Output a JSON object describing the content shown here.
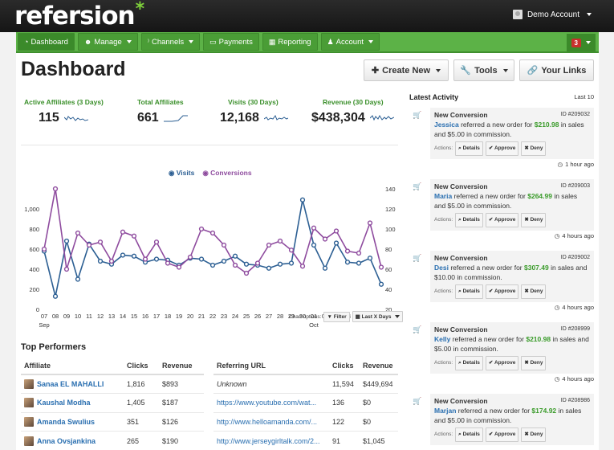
{
  "header": {
    "logo": "refersion",
    "logo_mark": "*",
    "account_label": "Demo Account"
  },
  "nav": {
    "items": [
      {
        "label": "Dashboard",
        "icon": "dashboard-icon"
      },
      {
        "label": "Manage",
        "icon": "users-icon"
      },
      {
        "label": "Channels",
        "icon": "rss-icon"
      },
      {
        "label": "Payments",
        "icon": "money-icon"
      },
      {
        "label": "Reporting",
        "icon": "chart-icon"
      },
      {
        "label": "Account",
        "icon": "user-icon"
      }
    ],
    "notification_count": "3"
  },
  "page": {
    "title": "Dashboard",
    "create_new": "Create New",
    "tools": "Tools",
    "your_links": "Your Links"
  },
  "metrics": [
    {
      "label": "Active Affiliates (3 Days)",
      "value": "115"
    },
    {
      "label": "Total Affiliates",
      "value": "661"
    },
    {
      "label": "Visits (30 Days)",
      "value": "12,168"
    },
    {
      "label": "Revenue (30 Days)",
      "value": "$438,304"
    }
  ],
  "chart_data": {
    "type": "line",
    "categories": [
      "07",
      "08",
      "09",
      "10",
      "11",
      "12",
      "13",
      "14",
      "15",
      "16",
      "17",
      "18",
      "19",
      "20",
      "21",
      "22",
      "23",
      "24",
      "25",
      "26",
      "27",
      "28",
      "29",
      "30",
      "01",
      "02",
      "03",
      "04",
      "05",
      "06",
      "07"
    ],
    "month_labels": [
      "Sep",
      "Oct"
    ],
    "series": [
      {
        "name": "Visits",
        "axis": "left",
        "color": "#2c5f93",
        "values": [
          580,
          130,
          680,
          300,
          650,
          480,
          450,
          540,
          530,
          470,
          500,
          490,
          440,
          510,
          500,
          440,
          480,
          530,
          450,
          440,
          410,
          450,
          460,
          1090,
          640,
          410,
          660,
          470,
          460,
          510,
          250
        ]
      },
      {
        "name": "Conversions",
        "axis": "right",
        "color": "#8e4b9e",
        "values": [
          80,
          140,
          60,
          96,
          84,
          87,
          68,
          97,
          93,
          70,
          87,
          66,
          62,
          72,
          100,
          96,
          84,
          64,
          56,
          66,
          84,
          88,
          79,
          63,
          101,
          90,
          98,
          78,
          76,
          106,
          62
        ]
      }
    ],
    "y_left_ticks": [
      "1,000",
      "800",
      "600",
      "400",
      "200",
      "0"
    ],
    "y_left_range": [
      0,
      1200
    ],
    "y_right_ticks": [
      "140",
      "120",
      "100",
      "80",
      "60",
      "40",
      "20"
    ],
    "y_right_range": [
      20,
      140
    ],
    "legend": "top-center",
    "grid": false
  },
  "chart_options": {
    "label": "Chart options:",
    "filter": "Filter",
    "range": "Last X Days"
  },
  "top_performers": {
    "title": "Top Performers",
    "affiliate_headers": [
      "Affiliate",
      "Clicks",
      "Revenue"
    ],
    "affiliates": [
      {
        "name": "Sanaa EL MAHALLI",
        "clicks": "1,816",
        "revenue": "$893"
      },
      {
        "name": "Kaushal Modha",
        "clicks": "1,405",
        "revenue": "$187"
      },
      {
        "name": "Amanda Swulius",
        "clicks": "351",
        "revenue": "$126"
      },
      {
        "name": "Anna Ovsjankina",
        "clicks": "265",
        "revenue": "$190"
      }
    ],
    "url_headers": [
      "Referring URL",
      "Clicks",
      "Revenue"
    ],
    "urls": [
      {
        "url": "Unknown",
        "clicks": "11,594",
        "revenue": "$449,694"
      },
      {
        "url": "https://www.youtube.com/wat...",
        "clicks": "136",
        "revenue": "$0"
      },
      {
        "url": "http://www.helloamanda.com/...",
        "clicks": "122",
        "revenue": "$0"
      },
      {
        "url": "http://www.jerseygirltalk.com/2...",
        "clicks": "91",
        "revenue": "$1,045"
      }
    ]
  },
  "activity": {
    "title": "Latest Activity",
    "last": "Last 10",
    "actions_label": "Actions:",
    "details": "Details",
    "approve": "Approve",
    "deny": "Deny",
    "items": [
      {
        "type": "New Conversion",
        "id": "ID #209032",
        "name": "Jessica",
        "text1": " referred a new order for ",
        "amount": "$210.98",
        "text2": " in sales and $5.00 in commission.",
        "time": "1 hour ago"
      },
      {
        "type": "New Conversion",
        "id": "ID #209003",
        "name": "Maria",
        "text1": " referred a new order for ",
        "amount": "$264.99",
        "text2": " in sales and $5.00 in commission.",
        "time": "4 hours ago"
      },
      {
        "type": "New Conversion",
        "id": "ID #209002",
        "name": "Desi",
        "text1": " referred a new order for ",
        "amount": "$307.49",
        "text2": " in sales and $10.00 in commission.",
        "time": "4 hours ago"
      },
      {
        "type": "New Conversion",
        "id": "ID #208999",
        "name": "Kelly",
        "text1": " referred a new order for ",
        "amount": "$210.98",
        "text2": " in sales and $5.00 in commission.",
        "time": "4 hours ago"
      },
      {
        "type": "New Conversion",
        "id": "ID #208986",
        "name": "Marjan",
        "text1": " referred a new order for ",
        "amount": "$174.92",
        "text2": " in sales and $5.00 in commission.",
        "time": ""
      }
    ]
  }
}
